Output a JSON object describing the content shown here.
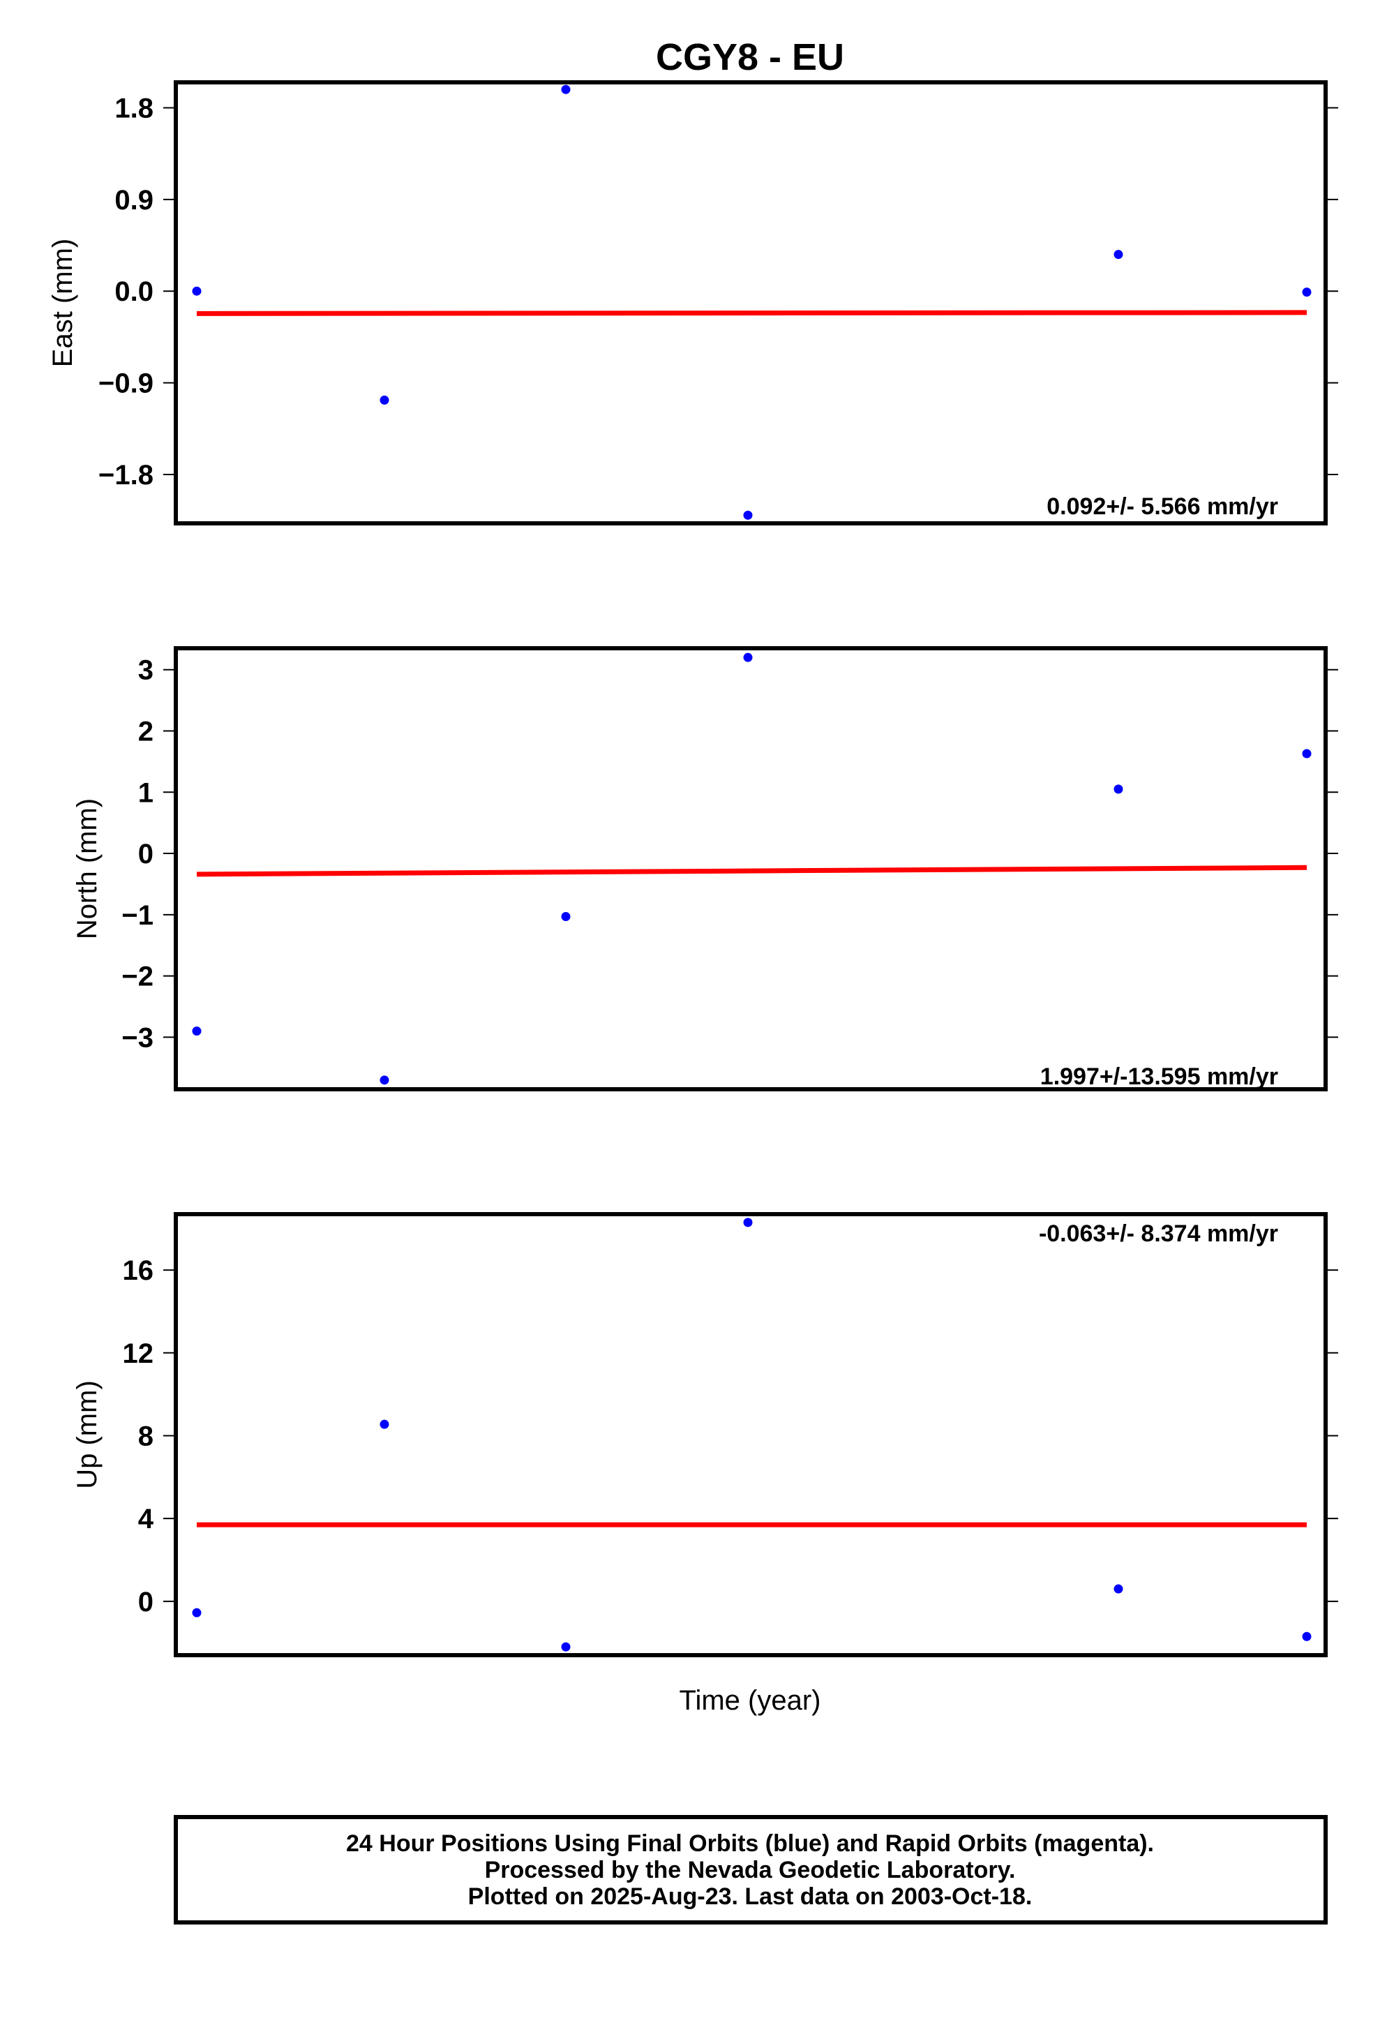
{
  "chart_data": [
    {
      "type": "scatter",
      "title": "CGY8 - EU",
      "ylabel": "East (mm)",
      "ylim": [
        -2.28,
        2.05
      ],
      "yticks": [
        1.8,
        0.9,
        0.0,
        -0.9,
        -1.8
      ],
      "ytick_labels": [
        "1.8",
        "0.9",
        "0.0",
        "−0.9",
        "−1.8"
      ],
      "x": [
        0,
        1,
        2,
        3,
        4,
        5
      ],
      "series": [
        {
          "values": [
            0.0,
            -1.07,
            1.98,
            -2.2,
            0.36,
            -0.01
          ]
        }
      ],
      "trend": {
        "start": -0.22,
        "end": -0.21
      },
      "rate": "0.092+/- 5.566 mm/yr",
      "rate_position": "bottom-right"
    },
    {
      "type": "scatter",
      "ylabel": "North (mm)",
      "ylim": [
        -3.85,
        3.35
      ],
      "yticks": [
        3,
        2,
        1,
        0,
        -1,
        -2,
        -3
      ],
      "ytick_labels": [
        "3",
        "2",
        "1",
        "0",
        "−1",
        "−2",
        "−3"
      ],
      "x": [
        0,
        1,
        2,
        3,
        4,
        5
      ],
      "series": [
        {
          "values": [
            -2.9,
            -3.7,
            -1.03,
            3.2,
            1.05,
            1.63
          ]
        }
      ],
      "trend": {
        "start": -0.34,
        "end": -0.23
      },
      "rate": "1.997+/-13.595 mm/yr",
      "rate_position": "bottom-right"
    },
    {
      "type": "scatter",
      "ylabel": "Up (mm)",
      "ylim": [
        -2.6,
        18.7
      ],
      "yticks": [
        16,
        12,
        8,
        4,
        0
      ],
      "ytick_labels": [
        "16",
        "12",
        "8",
        "4",
        "0"
      ],
      "x": [
        0,
        1,
        2,
        3,
        4,
        5
      ],
      "series": [
        {
          "values": [
            -0.55,
            8.55,
            -2.2,
            18.3,
            0.6,
            -1.7
          ]
        }
      ],
      "trend": {
        "start": 3.7,
        "end": 3.7
      },
      "rate": "-0.063+/- 8.374 mm/yr",
      "rate_position": "top-right",
      "xlabel": "Time (year)"
    }
  ],
  "footer": {
    "line1": "24 Hour Positions Using Final Orbits (blue) and Rapid Orbits (magenta).",
    "line2": "Processed by the Nevada Geodetic Laboratory.",
    "line3": "Plotted on 2025-Aug-23. Last data on 2003-Oct-18."
  },
  "colors": {
    "points": "#0000ff",
    "trend": "#ff0000",
    "frame": "#000000"
  }
}
